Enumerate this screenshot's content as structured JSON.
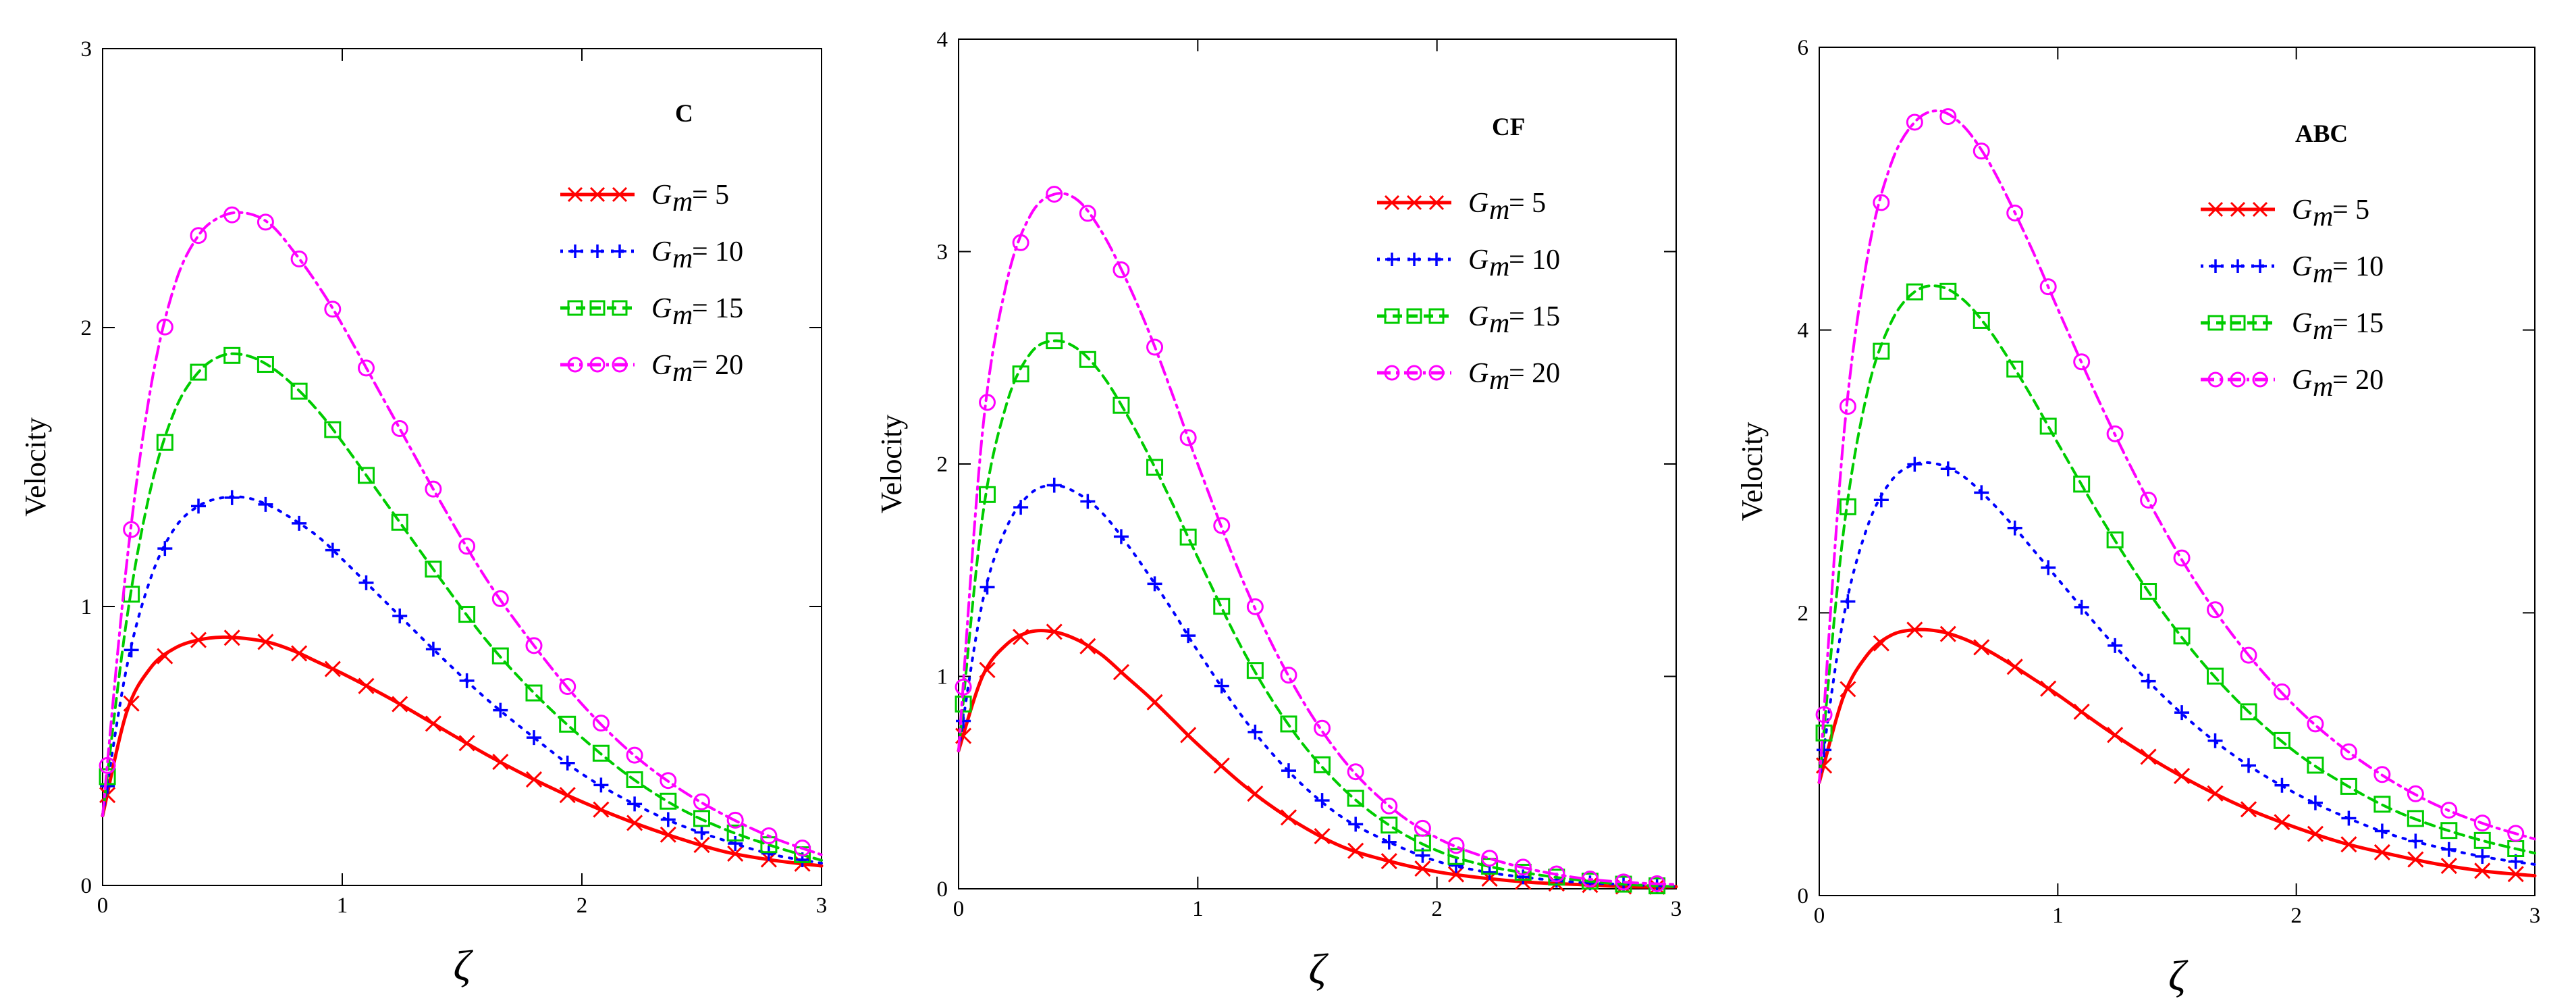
{
  "colors": {
    "series": [
      "#ff0000",
      "#0000ff",
      "#00cc00",
      "#ff00ff"
    ],
    "axis": "#000000"
  },
  "legend_symbol": "G",
  "legend_subscript": "m",
  "chart_data": [
    {
      "type": "line",
      "title": "C",
      "xlabel": "ζ",
      "ylabel": "Velocity",
      "xlim": [
        0,
        3
      ],
      "ylim": [
        0,
        3
      ],
      "xticks": [
        0,
        1,
        2,
        3
      ],
      "yticks": [
        0,
        1,
        2,
        3
      ],
      "legend_position": "top-right",
      "x": [
        0,
        0.1,
        0.2,
        0.3,
        0.4,
        0.5,
        0.6,
        0.7,
        0.8,
        0.9,
        1.0,
        1.2,
        1.4,
        1.6,
        1.8,
        2.0,
        2.2,
        2.4,
        2.6,
        2.8,
        3.0
      ],
      "series": [
        {
          "name": "Gm = 5",
          "label": "= 5",
          "marker": "x",
          "linestyle": "solid",
          "values": [
            0.25,
            0.62,
            0.78,
            0.85,
            0.88,
            0.89,
            0.885,
            0.87,
            0.84,
            0.8,
            0.76,
            0.67,
            0.57,
            0.47,
            0.38,
            0.3,
            0.23,
            0.17,
            0.12,
            0.09,
            0.07
          ]
        },
        {
          "name": "Gm = 10",
          "label": "= 10",
          "marker": "plus",
          "linestyle": "dotted",
          "values": [
            0.25,
            0.78,
            1.1,
            1.28,
            1.36,
            1.39,
            1.39,
            1.36,
            1.31,
            1.25,
            1.17,
            1.0,
            0.83,
            0.67,
            0.53,
            0.4,
            0.3,
            0.22,
            0.16,
            0.11,
            0.08
          ]
        },
        {
          "name": "Gm = 15",
          "label": "= 15",
          "marker": "square",
          "linestyle": "dashed",
          "values": [
            0.25,
            0.95,
            1.42,
            1.7,
            1.84,
            1.9,
            1.9,
            1.86,
            1.79,
            1.7,
            1.59,
            1.35,
            1.11,
            0.88,
            0.69,
            0.53,
            0.39,
            0.28,
            0.2,
            0.14,
            0.09
          ]
        },
        {
          "name": "Gm = 20",
          "label": "= 20",
          "marker": "circle",
          "linestyle": "dashdot",
          "values": [
            0.25,
            1.15,
            1.78,
            2.15,
            2.33,
            2.4,
            2.41,
            2.37,
            2.27,
            2.15,
            2.01,
            1.7,
            1.39,
            1.1,
            0.86,
            0.65,
            0.48,
            0.35,
            0.25,
            0.17,
            0.11
          ]
        }
      ]
    },
    {
      "type": "line",
      "title": "CF",
      "xlabel": "ζ",
      "ylabel": "Velocity",
      "xlim": [
        0,
        3
      ],
      "ylim": [
        0,
        4
      ],
      "xticks": [
        0,
        1,
        2,
        3
      ],
      "yticks": [
        0,
        1,
        2,
        3,
        4
      ],
      "legend_position": "top-right",
      "x": [
        0,
        0.1,
        0.2,
        0.3,
        0.4,
        0.5,
        0.6,
        0.7,
        0.8,
        0.9,
        1.0,
        1.2,
        1.4,
        1.6,
        1.8,
        2.0,
        2.2,
        2.4,
        2.6,
        2.8,
        3.0
      ],
      "series": [
        {
          "name": "Gm = 5",
          "label": "= 5",
          "marker": "x",
          "linestyle": "solid",
          "values": [
            0.65,
            1.0,
            1.15,
            1.21,
            1.21,
            1.17,
            1.1,
            1.0,
            0.9,
            0.79,
            0.68,
            0.48,
            0.32,
            0.2,
            0.13,
            0.08,
            0.05,
            0.03,
            0.02,
            0.01,
            0.01
          ]
        },
        {
          "name": "Gm = 10",
          "label": "= 10",
          "marker": "plus",
          "linestyle": "dotted",
          "values": [
            0.65,
            1.35,
            1.7,
            1.86,
            1.9,
            1.86,
            1.77,
            1.63,
            1.47,
            1.3,
            1.12,
            0.79,
            0.53,
            0.34,
            0.22,
            0.13,
            0.08,
            0.05,
            0.03,
            0.02,
            0.01
          ]
        },
        {
          "name": "Gm = 15",
          "label": "= 15",
          "marker": "square",
          "linestyle": "dashed",
          "values": [
            0.65,
            1.75,
            2.28,
            2.52,
            2.58,
            2.54,
            2.42,
            2.24,
            2.03,
            1.8,
            1.56,
            1.1,
            0.74,
            0.48,
            0.3,
            0.18,
            0.11,
            0.07,
            0.04,
            0.02,
            0.01
          ]
        },
        {
          "name": "Gm = 20",
          "label": "= 20",
          "marker": "circle",
          "linestyle": "dashdot",
          "values": [
            0.65,
            2.15,
            2.85,
            3.17,
            3.27,
            3.24,
            3.09,
            2.87,
            2.61,
            2.31,
            2.0,
            1.42,
            0.96,
            0.62,
            0.39,
            0.24,
            0.15,
            0.09,
            0.05,
            0.03,
            0.02
          ]
        }
      ]
    },
    {
      "type": "line",
      "title": "ABC",
      "xlabel": "ζ",
      "ylabel": "Velocity",
      "xlim": [
        0,
        3
      ],
      "ylim": [
        0,
        6
      ],
      "xticks": [
        0,
        1,
        2,
        3
      ],
      "yticks": [
        0,
        2,
        4,
        6
      ],
      "legend_position": "top-right",
      "x": [
        0,
        0.1,
        0.2,
        0.3,
        0.4,
        0.5,
        0.6,
        0.7,
        0.8,
        0.9,
        1.0,
        1.2,
        1.4,
        1.6,
        1.8,
        2.0,
        2.2,
        2.4,
        2.6,
        2.8,
        3.0
      ],
      "series": [
        {
          "name": "Gm = 5",
          "label": "= 5",
          "marker": "x",
          "linestyle": "solid",
          "values": [
            0.8,
            1.4,
            1.7,
            1.84,
            1.88,
            1.87,
            1.82,
            1.74,
            1.64,
            1.53,
            1.42,
            1.18,
            0.96,
            0.77,
            0.61,
            0.48,
            0.37,
            0.29,
            0.22,
            0.17,
            0.14
          ]
        },
        {
          "name": "Gm = 10",
          "label": "= 10",
          "marker": "plus",
          "linestyle": "dotted",
          "values": [
            0.8,
            1.95,
            2.6,
            2.93,
            3.05,
            3.05,
            2.97,
            2.82,
            2.64,
            2.44,
            2.24,
            1.84,
            1.48,
            1.17,
            0.92,
            0.72,
            0.56,
            0.43,
            0.34,
            0.27,
            0.22
          ]
        },
        {
          "name": "Gm = 15",
          "label": "= 15",
          "marker": "square",
          "linestyle": "dashed",
          "values": [
            0.8,
            2.55,
            3.55,
            4.05,
            4.27,
            4.31,
            4.22,
            4.03,
            3.78,
            3.5,
            3.2,
            2.62,
            2.1,
            1.66,
            1.3,
            1.01,
            0.79,
            0.61,
            0.48,
            0.38,
            0.3
          ]
        },
        {
          "name": "Gm = 20",
          "label": "= 20",
          "marker": "circle",
          "linestyle": "dashdot",
          "values": [
            0.8,
            3.2,
            4.5,
            5.17,
            5.47,
            5.55,
            5.45,
            5.22,
            4.9,
            4.54,
            4.15,
            3.4,
            2.73,
            2.16,
            1.7,
            1.33,
            1.04,
            0.81,
            0.63,
            0.5,
            0.4
          ]
        }
      ]
    }
  ]
}
